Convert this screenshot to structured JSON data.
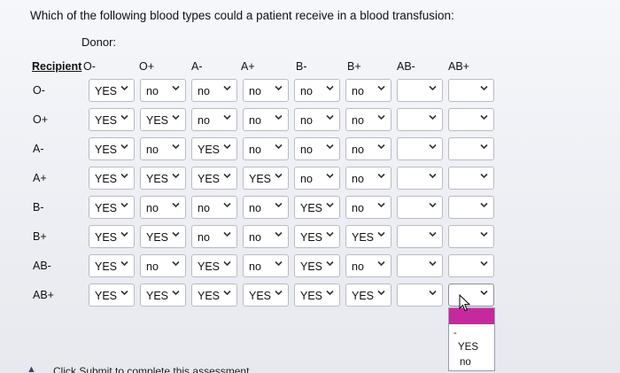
{
  "question": "Which of the following blood types could a patient receive in a blood transfusion:",
  "donor_label": "Donor:",
  "recipient_label": "Recipient",
  "columns": [
    "O-",
    "O+",
    "A-",
    "A+",
    "B-",
    "B+",
    "AB-",
    "AB+"
  ],
  "rows": [
    {
      "label": "O-",
      "values": [
        "YES",
        "no",
        "no",
        "no",
        "no",
        "no",
        "",
        ""
      ]
    },
    {
      "label": "O+",
      "values": [
        "YES",
        "YES",
        "no",
        "no",
        "no",
        "no",
        "",
        ""
      ]
    },
    {
      "label": "A-",
      "values": [
        "YES",
        "no",
        "YES",
        "no",
        "no",
        "no",
        "",
        ""
      ]
    },
    {
      "label": "A+",
      "values": [
        "YES",
        "YES",
        "YES",
        "YES",
        "no",
        "no",
        "",
        ""
      ]
    },
    {
      "label": "B-",
      "values": [
        "YES",
        "no",
        "no",
        "no",
        "YES",
        "no",
        "",
        ""
      ]
    },
    {
      "label": "B+",
      "values": [
        "YES",
        "YES",
        "no",
        "no",
        "YES",
        "YES",
        "",
        ""
      ]
    },
    {
      "label": "AB-",
      "values": [
        "YES",
        "no",
        "YES",
        "no",
        "YES",
        "no",
        "",
        ""
      ]
    },
    {
      "label": "AB+",
      "values": [
        "YES",
        "YES",
        "YES",
        "YES",
        "YES",
        "YES",
        "",
        ""
      ]
    }
  ],
  "dropdown_options": {
    "blank": "-",
    "yes": "YES",
    "no": "no"
  },
  "accent_color": "#c6299d",
  "footer": "Click Submit to complete this assessment."
}
